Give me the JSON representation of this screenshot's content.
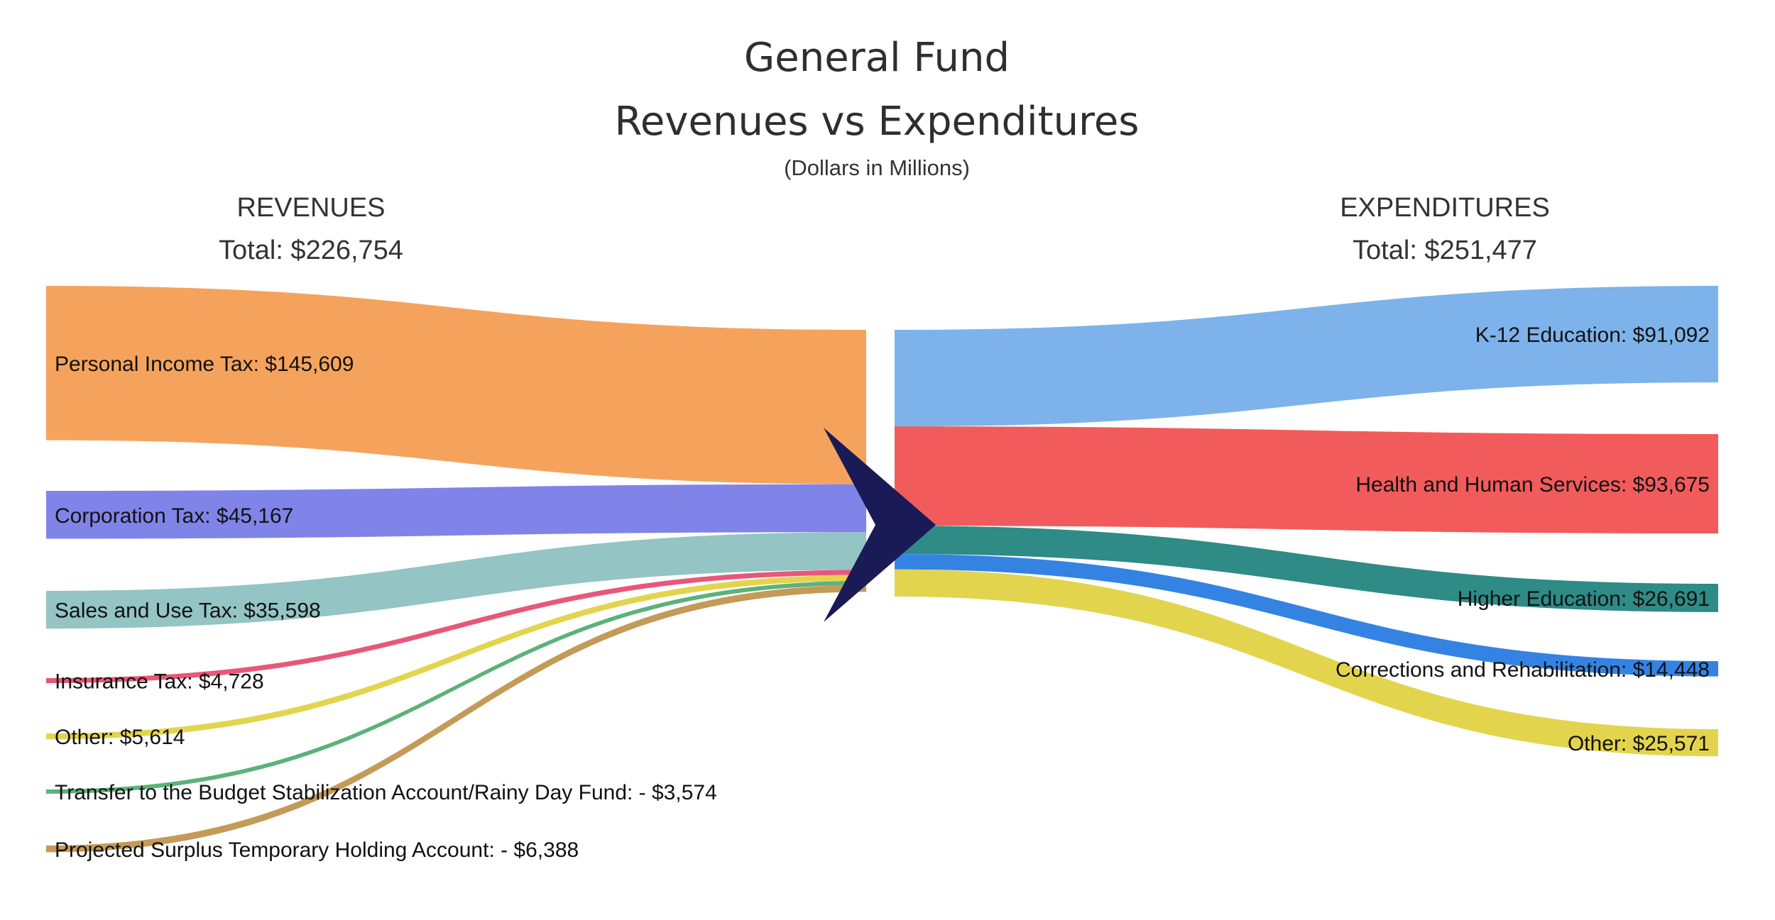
{
  "title_line1": "General Fund",
  "title_line2": "Revenues vs Expenditures",
  "subtitle": "(Dollars in Millions)",
  "revenues": {
    "heading": "REVENUES",
    "total_label": "Total: $226,754",
    "total": 226754
  },
  "expenditures": {
    "heading": "EXPENDITURES",
    "total_label": "Total: $251,477",
    "total": 251477
  },
  "chart_data": {
    "type": "sankey",
    "sources": [
      {
        "label": "Personal Income Tax: $145,609",
        "value": 145609,
        "color": "#F5A35C"
      },
      {
        "label": "Corporation Tax: $45,167",
        "value": 45167,
        "color": "#8084E8"
      },
      {
        "label": "Sales and Use Tax: $35,598",
        "value": 35598,
        "color": "#94C4C4"
      },
      {
        "label": "Insurance Tax: $4,728",
        "value": 4728,
        "color": "#E8577A"
      },
      {
        "label": "Other: $5,614",
        "value": 5614,
        "color": "#E3D44E"
      },
      {
        "label": "Transfer to the Budget Stabilization Account/Rainy Day Fund: - $3,574",
        "value": -3574,
        "color": "#5BB27A"
      },
      {
        "label": "Projected Surplus Temporary Holding Account: - $6,388",
        "value": -6388,
        "color": "#C49A57"
      }
    ],
    "targets": [
      {
        "label": "K-12 Education: $91,092",
        "value": 91092,
        "color": "#7DB3EA"
      },
      {
        "label": "Health and Human Services: $93,675",
        "value": 93675,
        "color": "#F25B5B"
      },
      {
        "label": "Higher Education: $26,691",
        "value": 26691,
        "color": "#2E8B86"
      },
      {
        "label": "Corrections and Rehabilitation: $14,448",
        "value": 14448,
        "color": "#3483E3"
      },
      {
        "label": "Other: $25,571",
        "value": 25571,
        "color": "#E3D44E"
      }
    ],
    "center_arrow_color": "#1A1A57"
  }
}
